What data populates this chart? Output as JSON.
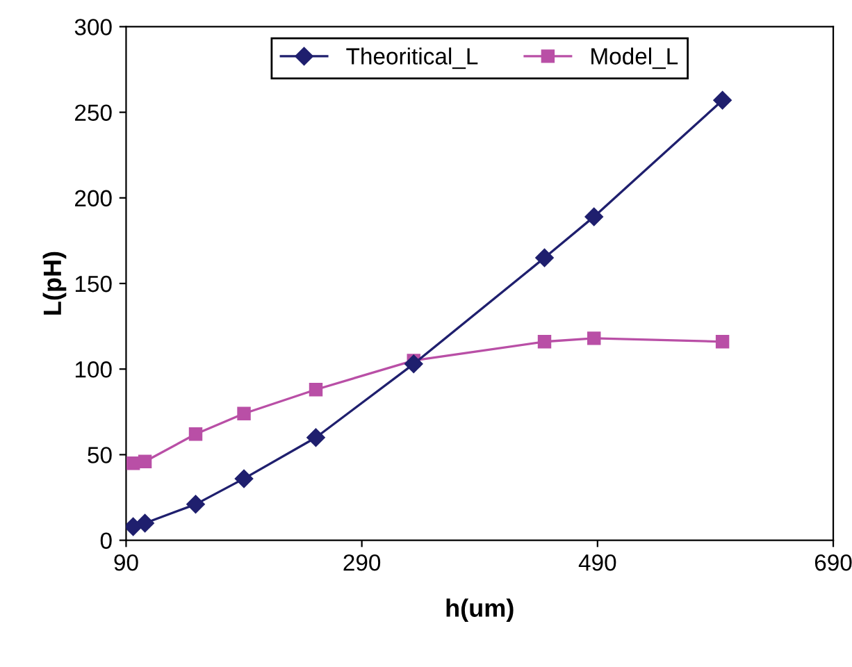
{
  "chart_data": {
    "type": "line",
    "xlabel": "h(um)",
    "ylabel": "L(pH)",
    "x": [
      96,
      106,
      149,
      190,
      251,
      334,
      445,
      487,
      596
    ],
    "series": [
      {
        "name": "Theoritical_L",
        "color": "#1f1f6e",
        "marker": "diamond",
        "values": [
          8,
          10,
          21,
          36,
          60,
          103,
          165,
          189,
          257
        ]
      },
      {
        "name": "Model_L",
        "color": "#b94fa6",
        "marker": "square",
        "values": [
          45,
          46,
          62,
          74,
          88,
          105,
          116,
          118,
          116
        ]
      }
    ],
    "xlim": [
      90,
      690
    ],
    "xticks": [
      90,
      290,
      490,
      690
    ],
    "ylim": [
      0,
      300
    ],
    "yticks": [
      0,
      50,
      100,
      150,
      200,
      250,
      300
    ],
    "grid": false,
    "legend": "top"
  }
}
